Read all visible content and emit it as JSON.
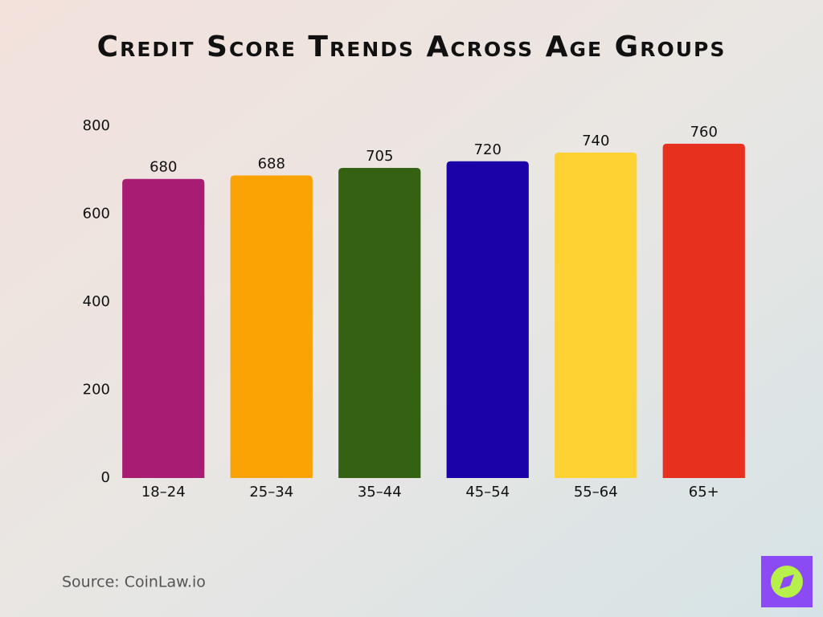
{
  "chart_data": {
    "type": "bar",
    "title": "Credit Score Trends Across Age Groups",
    "categories": [
      "18–24",
      "25–34",
      "35–44",
      "45–54",
      "55–64",
      "65+"
    ],
    "values": [
      680,
      688,
      705,
      720,
      740,
      760
    ],
    "colors": [
      "#a81c74",
      "#fba305",
      "#346112",
      "#1a02a8",
      "#fed232",
      "#e7301e"
    ],
    "ylim": [
      0,
      800
    ],
    "yticks": [
      0,
      200,
      400,
      600,
      800
    ],
    "grid": false,
    "source": "Source: CoinLaw.io"
  }
}
